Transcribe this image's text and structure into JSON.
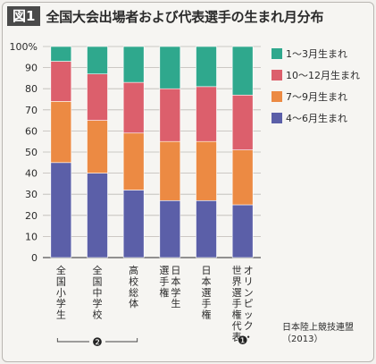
{
  "header": {
    "fig_label": "図1",
    "title": "全国大会出場者および代表選手の生まれ月分布"
  },
  "chart_data": {
    "type": "bar",
    "stacked": true,
    "ylim": [
      0,
      100
    ],
    "yticks": [
      "0",
      "10",
      "20",
      "30",
      "40",
      "50",
      "60",
      "70",
      "80",
      "90",
      "100%"
    ],
    "categories": [
      "全国小学生",
      "全国中学校",
      "高校総体",
      "日本学生選手権",
      "日本選手権",
      "オリンピック・世界選手権代表"
    ],
    "category_lines": [
      [
        "全国小学生"
      ],
      [
        "全国中学校"
      ],
      [
        "高校総体"
      ],
      [
        "日本学生",
        "選手権"
      ],
      [
        "日本選手権"
      ],
      [
        "オリンピック・",
        "世界選手権代表"
      ]
    ],
    "series": [
      {
        "name": "4〜6月生まれ",
        "color": "#5b5fa8",
        "values": [
          45,
          40,
          32,
          27,
          27,
          25
        ]
      },
      {
        "name": "7〜9月生まれ",
        "color": "#ec8a43",
        "values": [
          29,
          25,
          27,
          28,
          28,
          26
        ]
      },
      {
        "name": "10〜12月生まれ",
        "color": "#dc5f6c",
        "values": [
          19,
          22,
          24,
          25,
          26,
          26
        ]
      },
      {
        "name": "1〜3月生まれ",
        "color": "#2fa88d",
        "values": [
          7,
          13,
          17,
          20,
          19,
          23
        ]
      }
    ],
    "group_marks": [
      {
        "label": "❷",
        "from": 0,
        "to": 2
      },
      {
        "label": "❶",
        "from": 5,
        "to": 5
      }
    ]
  },
  "source": {
    "org": "日本陸上競技連盟",
    "year": "（2013）"
  }
}
